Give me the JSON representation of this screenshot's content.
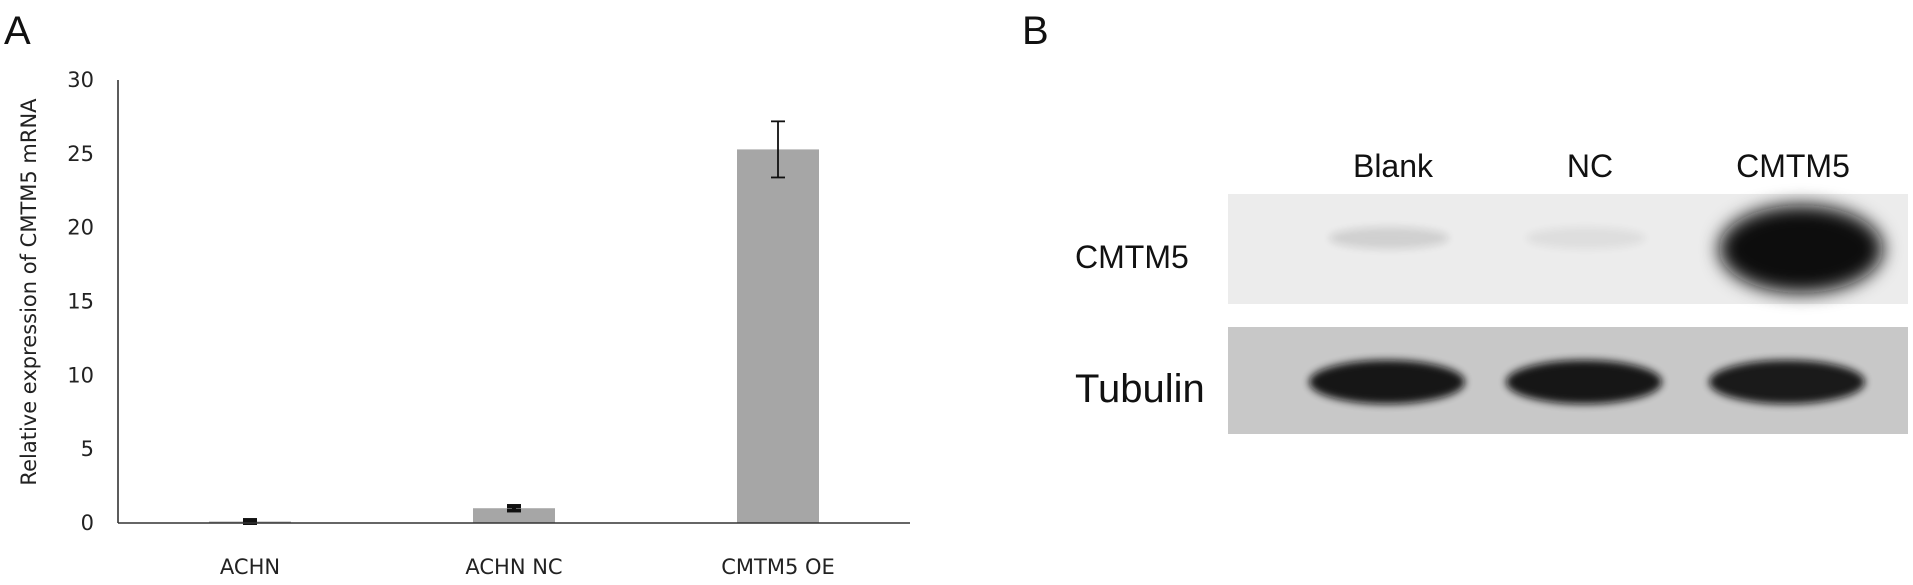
{
  "panels": {
    "a": {
      "letter": "A"
    },
    "b": {
      "letter": "B"
    }
  },
  "chart_data": {
    "type": "bar",
    "title": "",
    "xlabel": "",
    "ylabel": "Relative expression of CMTM5 mRNA",
    "categories": [
      "ACHN",
      "ACHN NC",
      "CMTM5 OE"
    ],
    "values": [
      0.1,
      1.0,
      25.3
    ],
    "errors": [
      0.1,
      0.15,
      1.9
    ],
    "ylim": [
      0,
      30
    ],
    "yticks": [
      0,
      5,
      10,
      15,
      20,
      25,
      30
    ],
    "grid": false,
    "legend": "none",
    "bar_color": "#a6a6a6",
    "error_color": "#111111",
    "axis_color": "#333333"
  },
  "blot": {
    "lane_labels": [
      "Blank",
      "NC",
      "CMTM5"
    ],
    "row_labels": [
      "CMTM5",
      "Tubulin"
    ],
    "cmtm5_band_intensity": [
      0.12,
      0.06,
      1.0
    ],
    "tubulin_band_intensity": [
      0.95,
      0.95,
      0.93
    ],
    "band_color": "#0a0a0a",
    "cmtm5_background": "#ececec",
    "tubulin_background": "#c8c8c8"
  }
}
